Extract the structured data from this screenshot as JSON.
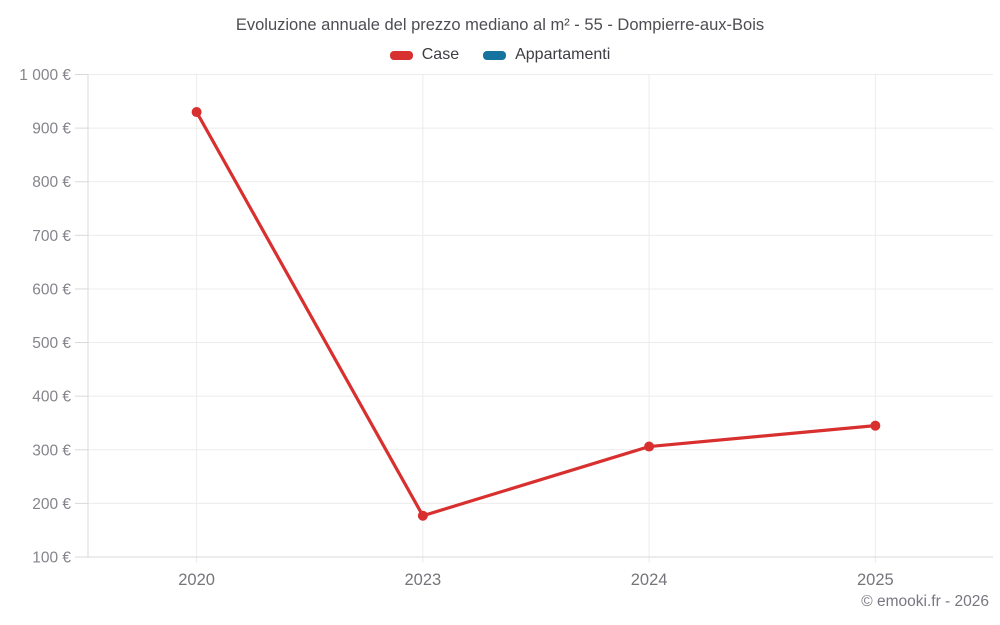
{
  "header": {
    "title": "Evoluzione annuale del prezzo mediano al m² - 55 - Dompierre-aux-Bois"
  },
  "legend": {
    "items": [
      {
        "label": "Case",
        "color": "#d8302f"
      },
      {
        "label": "Appartamenti",
        "color": "#1673a0"
      }
    ]
  },
  "footer": {
    "attribution": "© emooki.fr - 2026"
  },
  "colors": {
    "grid": "#ececec",
    "axis": "#d9d9d9",
    "y_tick_label": "#85848b",
    "x_tick_label": "#76757b"
  },
  "chart_data": {
    "type": "line",
    "title": "Evoluzione annuale del prezzo mediano al m² - 55 - Dompierre-aux-Bois",
    "categories": [
      "2020",
      "2023",
      "2024",
      "2025"
    ],
    "series": [
      {
        "name": "Case",
        "color": "#d8302f",
        "values": [
          930,
          177,
          306,
          345
        ]
      },
      {
        "name": "Appartamenti",
        "color": "#1673a0",
        "values": [
          null,
          null,
          null,
          null
        ]
      }
    ],
    "xlabel": "",
    "ylabel": "",
    "ylim": [
      100,
      1000
    ],
    "y_tick_step": 100,
    "y_ticks": [
      100,
      200,
      300,
      400,
      500,
      600,
      700,
      800,
      900,
      1000
    ],
    "y_tick_labels": [
      "100 €",
      "200 €",
      "300 €",
      "400 €",
      "500 €",
      "600 €",
      "700 €",
      "800 €",
      "900 €",
      "1 000 €"
    ],
    "unit": "€",
    "grid": true,
    "legend_position": "top",
    "marker_radius": 5,
    "line_width": 3.2
  }
}
